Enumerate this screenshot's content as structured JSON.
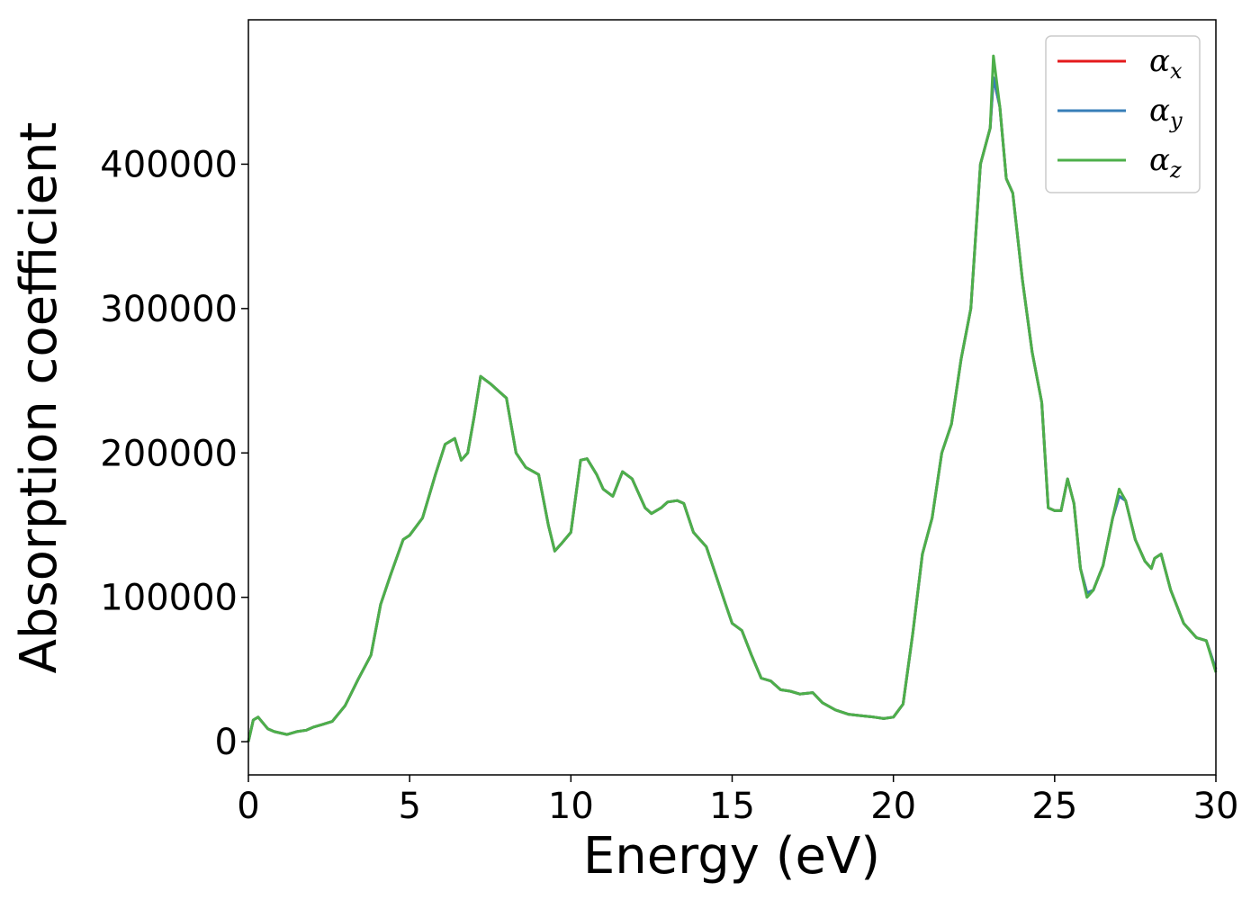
{
  "chart_data": {
    "type": "line",
    "xlabel": "Energy (eV)",
    "ylabel": "Absorption coefficient",
    "xlim": [
      0,
      30
    ],
    "ylim": [
      -23000,
      500000
    ],
    "xticks": [
      0,
      5,
      10,
      15,
      20,
      25,
      30
    ],
    "xtick_labels": [
      "0",
      "5",
      "10",
      "15",
      "20",
      "25",
      "30"
    ],
    "yticks": [
      0,
      100000,
      200000,
      300000,
      400000
    ],
    "ytick_labels": [
      "0",
      "100000",
      "200000",
      "300000",
      "400000"
    ],
    "grid": false,
    "legend": "top-right",
    "legend_entries": [
      {
        "symbol": "α",
        "sub": "x",
        "color": "#e41a1c"
      },
      {
        "symbol": "α",
        "sub": "y",
        "color": "#377eb8"
      },
      {
        "symbol": "α",
        "sub": "z",
        "color": "#4daf4a"
      }
    ],
    "x": [
      0,
      0.15,
      0.3,
      0.45,
      0.6,
      0.8,
      1.0,
      1.2,
      1.5,
      1.8,
      2.0,
      2.3,
      2.6,
      3.0,
      3.4,
      3.8,
      4.1,
      4.4,
      4.8,
      5.0,
      5.4,
      5.8,
      6.1,
      6.4,
      6.6,
      6.8,
      7.0,
      7.2,
      7.5,
      7.8,
      8.0,
      8.3,
      8.6,
      9.0,
      9.3,
      9.5,
      9.7,
      10.0,
      10.3,
      10.5,
      10.8,
      11.0,
      11.3,
      11.6,
      11.9,
      12.1,
      12.3,
      12.5,
      12.8,
      13.0,
      13.3,
      13.5,
      13.8,
      14.2,
      14.5,
      14.8,
      15.0,
      15.3,
      15.6,
      15.9,
      16.2,
      16.5,
      16.8,
      17.1,
      17.5,
      17.8,
      18.2,
      18.6,
      19.0,
      19.4,
      19.7,
      20.0,
      20.3,
      20.6,
      20.9,
      21.2,
      21.5,
      21.8,
      22.1,
      22.4,
      22.7,
      23.0,
      23.1,
      23.3,
      23.5,
      23.7,
      24.0,
      24.3,
      24.6,
      24.8,
      25.0,
      25.2,
      25.4,
      25.6,
      25.8,
      26.0,
      26.2,
      26.5,
      26.8,
      27.0,
      27.2,
      27.5,
      27.8,
      28.0,
      28.1,
      28.3,
      28.6,
      29.0,
      29.4,
      29.7,
      30.0
    ],
    "series": [
      {
        "name": "α_x",
        "color": "#e41a1c",
        "values": [
          0,
          15000,
          17000,
          13000,
          9000,
          7000,
          6000,
          5000,
          7000,
          8000,
          10000,
          12000,
          14000,
          25000,
          43000,
          60000,
          95000,
          115000,
          140000,
          143000,
          155000,
          185000,
          206000,
          210000,
          195000,
          200000,
          225000,
          253000,
          248000,
          242000,
          238000,
          200000,
          190000,
          185000,
          150000,
          132000,
          137000,
          145000,
          195000,
          196000,
          185000,
          175000,
          170000,
          187000,
          182000,
          172000,
          162000,
          158000,
          162000,
          166000,
          167000,
          165000,
          145000,
          135000,
          115000,
          95000,
          82000,
          77000,
          60000,
          44000,
          42000,
          36000,
          35000,
          33000,
          34000,
          27000,
          22000,
          19000,
          18000,
          17000,
          16000,
          17000,
          26000,
          75000,
          130000,
          155000,
          200000,
          220000,
          265000,
          300000,
          400000,
          425000,
          460000,
          440000,
          390000,
          380000,
          320000,
          270000,
          235000,
          162000,
          160000,
          160000,
          182000,
          165000,
          120000,
          103000,
          105000,
          122000,
          155000,
          170000,
          167000,
          140000,
          125000,
          120000,
          127000,
          130000,
          105000,
          82000,
          72000,
          70000,
          50000
        ]
      },
      {
        "name": "α_y",
        "color": "#377eb8",
        "values": [
          0,
          15000,
          17000,
          13000,
          9000,
          7000,
          6000,
          5000,
          7000,
          8000,
          10000,
          12000,
          14000,
          25000,
          43000,
          60000,
          95000,
          115000,
          140000,
          143000,
          155000,
          185000,
          206000,
          210000,
          195000,
          200000,
          225000,
          253000,
          248000,
          242000,
          238000,
          200000,
          190000,
          185000,
          150000,
          132000,
          137000,
          145000,
          195000,
          196000,
          185000,
          175000,
          170000,
          187000,
          182000,
          172000,
          162000,
          158000,
          162000,
          166000,
          167000,
          165000,
          145000,
          135000,
          115000,
          95000,
          82000,
          77000,
          60000,
          44000,
          42000,
          36000,
          35000,
          33000,
          34000,
          27000,
          22000,
          19000,
          18000,
          17000,
          16000,
          17000,
          26000,
          75000,
          130000,
          155000,
          200000,
          220000,
          265000,
          300000,
          400000,
          425000,
          460000,
          440000,
          390000,
          380000,
          320000,
          270000,
          235000,
          162000,
          160000,
          160000,
          182000,
          165000,
          120000,
          103000,
          105000,
          122000,
          155000,
          170000,
          167000,
          140000,
          125000,
          120000,
          127000,
          130000,
          105000,
          82000,
          72000,
          70000,
          50000
        ]
      },
      {
        "name": "α_z",
        "color": "#4daf4a",
        "values": [
          0,
          15000,
          17000,
          13000,
          9000,
          7000,
          6000,
          5000,
          7000,
          8000,
          10000,
          12000,
          14000,
          25000,
          43000,
          60000,
          95000,
          115000,
          140000,
          143000,
          155000,
          185000,
          206000,
          210000,
          195000,
          200000,
          225000,
          253000,
          248000,
          242000,
          238000,
          200000,
          190000,
          185000,
          150000,
          132000,
          137000,
          145000,
          195000,
          196000,
          185000,
          175000,
          170000,
          187000,
          182000,
          172000,
          162000,
          158000,
          162000,
          166000,
          167000,
          165000,
          145000,
          135000,
          115000,
          95000,
          82000,
          77000,
          60000,
          44000,
          42000,
          36000,
          35000,
          33000,
          34000,
          27000,
          22000,
          19000,
          18000,
          17000,
          16000,
          17000,
          26000,
          75000,
          130000,
          155000,
          200000,
          220000,
          265000,
          300000,
          400000,
          425000,
          475000,
          440000,
          390000,
          380000,
          320000,
          270000,
          235000,
          162000,
          160000,
          160000,
          182000,
          165000,
          120000,
          100000,
          105000,
          122000,
          155000,
          175000,
          167000,
          140000,
          125000,
          120000,
          127000,
          130000,
          105000,
          82000,
          72000,
          70000,
          48000
        ]
      }
    ]
  }
}
